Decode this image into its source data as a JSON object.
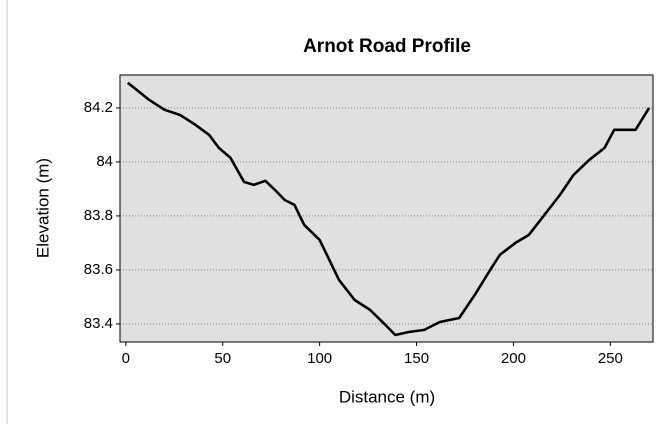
{
  "chart_data": {
    "type": "line",
    "title": "Arnot Road Profile",
    "x_label": "Distance (m)",
    "y_label": "Elevation (m)",
    "x": [
      1,
      7,
      12,
      20,
      28,
      36,
      43,
      48,
      54,
      61,
      66,
      72,
      77,
      82,
      87,
      92,
      100,
      105,
      110,
      118,
      126,
      134,
      139,
      146,
      154,
      162,
      172,
      180,
      188,
      193,
      201,
      208,
      216,
      224,
      231,
      239,
      247,
      252,
      263,
      270
    ],
    "series": [
      {
        "name": "Elevation",
        "color": "#000000",
        "values": [
          84.293,
          84.259,
          84.23,
          84.193,
          84.174,
          84.137,
          84.1,
          84.052,
          84.015,
          83.926,
          83.915,
          83.93,
          83.896,
          83.859,
          83.841,
          83.767,
          83.711,
          83.637,
          83.563,
          83.489,
          83.452,
          83.396,
          83.359,
          83.37,
          83.378,
          83.407,
          83.422,
          83.507,
          83.6,
          83.656,
          83.7,
          83.73,
          83.804,
          83.878,
          83.952,
          84.007,
          84.052,
          84.119,
          84.119,
          84.2
        ]
      }
    ],
    "xlim": [
      -3,
      272
    ],
    "xticks": [
      0,
      50,
      100,
      150,
      200,
      250
    ],
    "ylim": [
      83.333,
      84.322
    ],
    "yticks": [
      83.4,
      83.6,
      83.8,
      84,
      84.2
    ],
    "grid": true,
    "plot_background": "#e0e0e0"
  }
}
